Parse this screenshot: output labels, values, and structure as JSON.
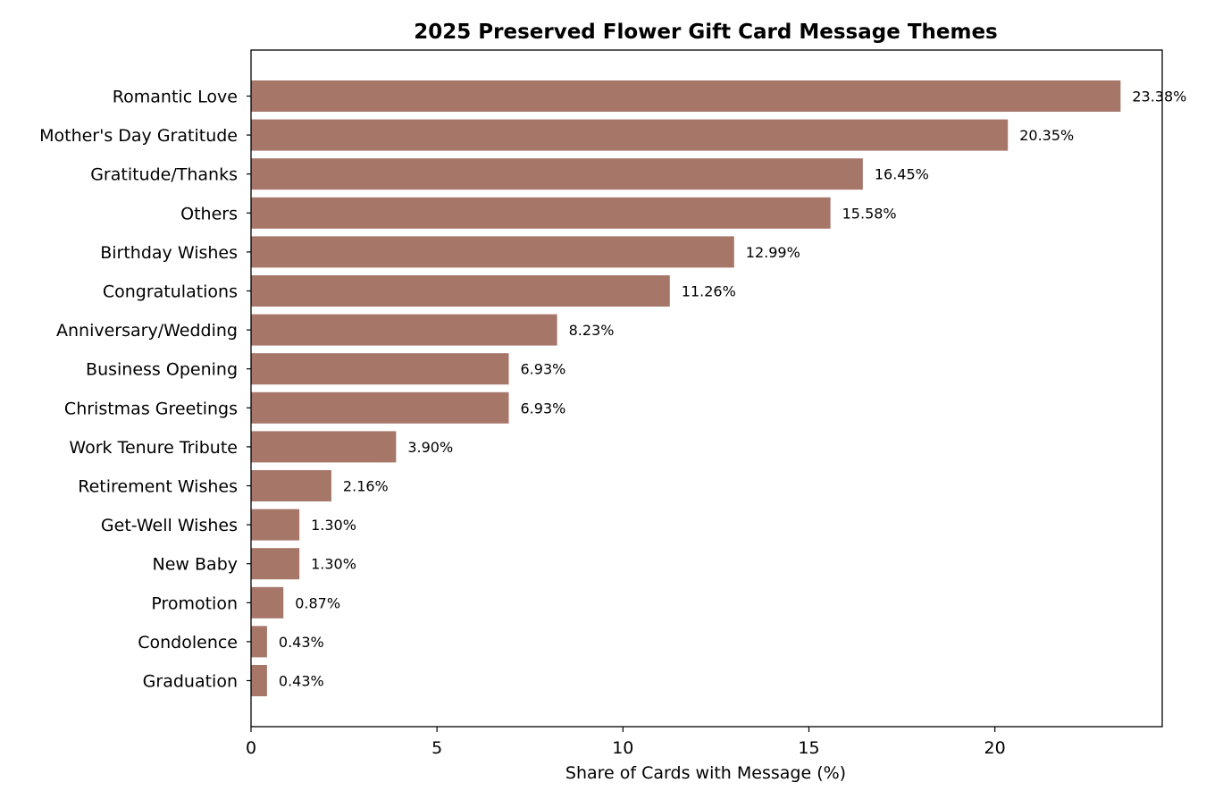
{
  "chart_data": {
    "type": "bar",
    "orientation": "horizontal",
    "title": "2025 Preserved Flower Gift Card Message Themes",
    "xlabel": "Share of Cards with Message (%)",
    "ylabel": "",
    "xlim": [
      0,
      24.5
    ],
    "xticks": [
      0,
      5,
      10,
      15,
      20
    ],
    "grid": false,
    "bar_color": "#a67669",
    "categories": [
      "Romantic Love",
      "Mother's Day Gratitude",
      "Gratitude/Thanks",
      "Others",
      "Birthday Wishes",
      "Congratulations",
      "Anniversary/Wedding",
      "Business Opening",
      "Christmas Greetings",
      "Work Tenure Tribute",
      "Retirement Wishes",
      "Get-Well Wishes",
      "New Baby",
      "Promotion",
      "Condolence",
      "Graduation"
    ],
    "values": [
      23.38,
      20.35,
      16.45,
      15.58,
      12.99,
      11.26,
      8.23,
      6.93,
      6.93,
      3.9,
      2.16,
      1.3,
      1.3,
      0.87,
      0.43,
      0.43
    ],
    "value_labels": [
      "23.38%",
      "20.35%",
      "16.45%",
      "15.58%",
      "12.99%",
      "11.26%",
      "8.23%",
      "6.93%",
      "6.93%",
      "3.90%",
      "2.16%",
      "1.30%",
      "1.30%",
      "0.87%",
      "0.43%",
      "0.43%"
    ]
  }
}
